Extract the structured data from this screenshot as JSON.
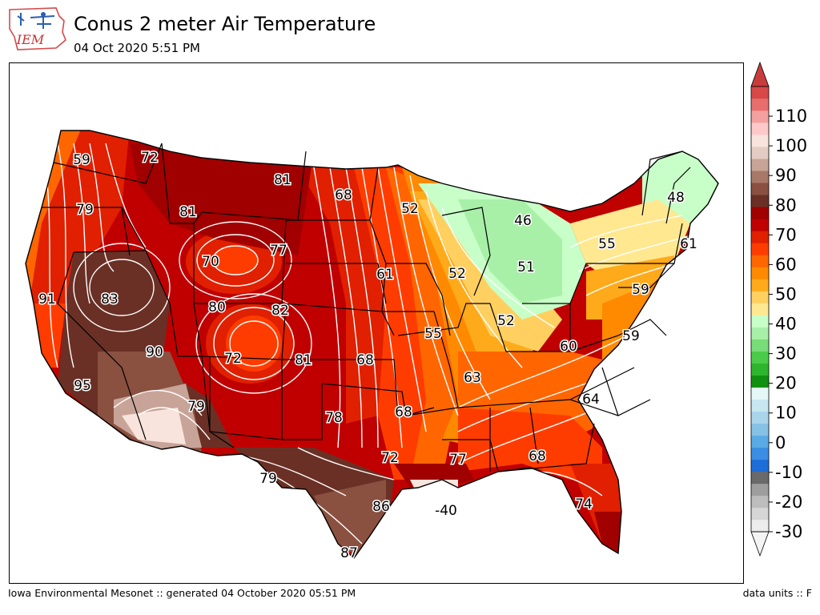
{
  "header": {
    "logo_text": "IEM",
    "title": "Conus 2 meter Air Temperature",
    "subtitle": "04 Oct 2020 5:51 PM"
  },
  "footer": {
    "credit": "Iowa Environmental Mesonet :: generated 04 October 2020 05:51 PM",
    "units": "data units :: F"
  },
  "colors": {
    "label_text": "#000000",
    "state_lines": "#000000",
    "contour_lines": "#ffffff"
  },
  "map_labels": [
    {
      "id": "pnw-coast",
      "value": "59"
    },
    {
      "id": "n-idaho",
      "value": "72"
    },
    {
      "id": "n-montana",
      "value": "81"
    },
    {
      "id": "n-dakota",
      "value": "68"
    },
    {
      "id": "w-oregon",
      "value": "79"
    },
    {
      "id": "sw-montana",
      "value": "81"
    },
    {
      "id": "ne-minn",
      "value": "52"
    },
    {
      "id": "n-michigan",
      "value": "46"
    },
    {
      "id": "maine",
      "value": "48"
    },
    {
      "id": "wyoming",
      "value": "70"
    },
    {
      "id": "s-dakota",
      "value": "77"
    },
    {
      "id": "new-york",
      "value": "55"
    },
    {
      "id": "mass",
      "value": "61"
    },
    {
      "id": "nebraska-e",
      "value": "61"
    },
    {
      "id": "illinois-n",
      "value": "52"
    },
    {
      "id": "michigan-s",
      "value": "51"
    },
    {
      "id": "n-calif",
      "value": "91"
    },
    {
      "id": "nevada",
      "value": "83"
    },
    {
      "id": "utah",
      "value": "80"
    },
    {
      "id": "colorado-n",
      "value": "82"
    },
    {
      "id": "ohio",
      "value": "52"
    },
    {
      "id": "new-jersey",
      "value": "59"
    },
    {
      "id": "missouri",
      "value": "55"
    },
    {
      "id": "virginia",
      "value": "59"
    },
    {
      "id": "s-nevada",
      "value": "90"
    },
    {
      "id": "colorado",
      "value": "72"
    },
    {
      "id": "kansas-w",
      "value": "81"
    },
    {
      "id": "kansas",
      "value": "68"
    },
    {
      "id": "kentucky",
      "value": "60"
    },
    {
      "id": "tennessee",
      "value": "63"
    },
    {
      "id": "s-calif",
      "value": "95"
    },
    {
      "id": "arizona",
      "value": "79"
    },
    {
      "id": "n-carolina",
      "value": "64"
    },
    {
      "id": "oklahoma",
      "value": "78"
    },
    {
      "id": "arkansas",
      "value": "68"
    },
    {
      "id": "texas-ne",
      "value": "72"
    },
    {
      "id": "mississippi",
      "value": "77"
    },
    {
      "id": "georgia",
      "value": "68"
    },
    {
      "id": "w-texas",
      "value": "79"
    },
    {
      "id": "se-texas",
      "value": "86"
    },
    {
      "id": "louisiana-coast",
      "value": "-40"
    },
    {
      "id": "florida",
      "value": "74"
    },
    {
      "id": "s-texas",
      "value": "87"
    }
  ],
  "colorbar": {
    "ticks": [
      "-30",
      "-20",
      "-10",
      "0",
      "10",
      "20",
      "30",
      "40",
      "50",
      "60",
      "70",
      "80",
      "90",
      "100",
      "110"
    ],
    "min": -30,
    "max": 120,
    "step": 5,
    "extend": "both",
    "colors": [
      "#ececec",
      "#d6d6d6",
      "#bdbdbd",
      "#9e9e9e",
      "#6a6a6a",
      "#1d6ed8",
      "#3b8ee4",
      "#5aaae6",
      "#86c2e6",
      "#aad4ea",
      "#c8e6f0",
      "#e4f8f8",
      "#109010",
      "#2eb52e",
      "#4acc4a",
      "#78dc78",
      "#a8f0a8",
      "#c8ffc8",
      "#ffe890",
      "#ffd060",
      "#ffaa1a",
      "#ff8a00",
      "#ff6600",
      "#ff3c00",
      "#e02000",
      "#c00000",
      "#a00000",
      "#6a3025",
      "#8a5040",
      "#a87868",
      "#c8a498",
      "#e4ccc4",
      "#f8e4dc",
      "#ffc8c8",
      "#f4a0a0",
      "#e86e6e",
      "#d84848"
    ],
    "under_color": "#f4f4f4",
    "over_color": "#c83c3c"
  }
}
